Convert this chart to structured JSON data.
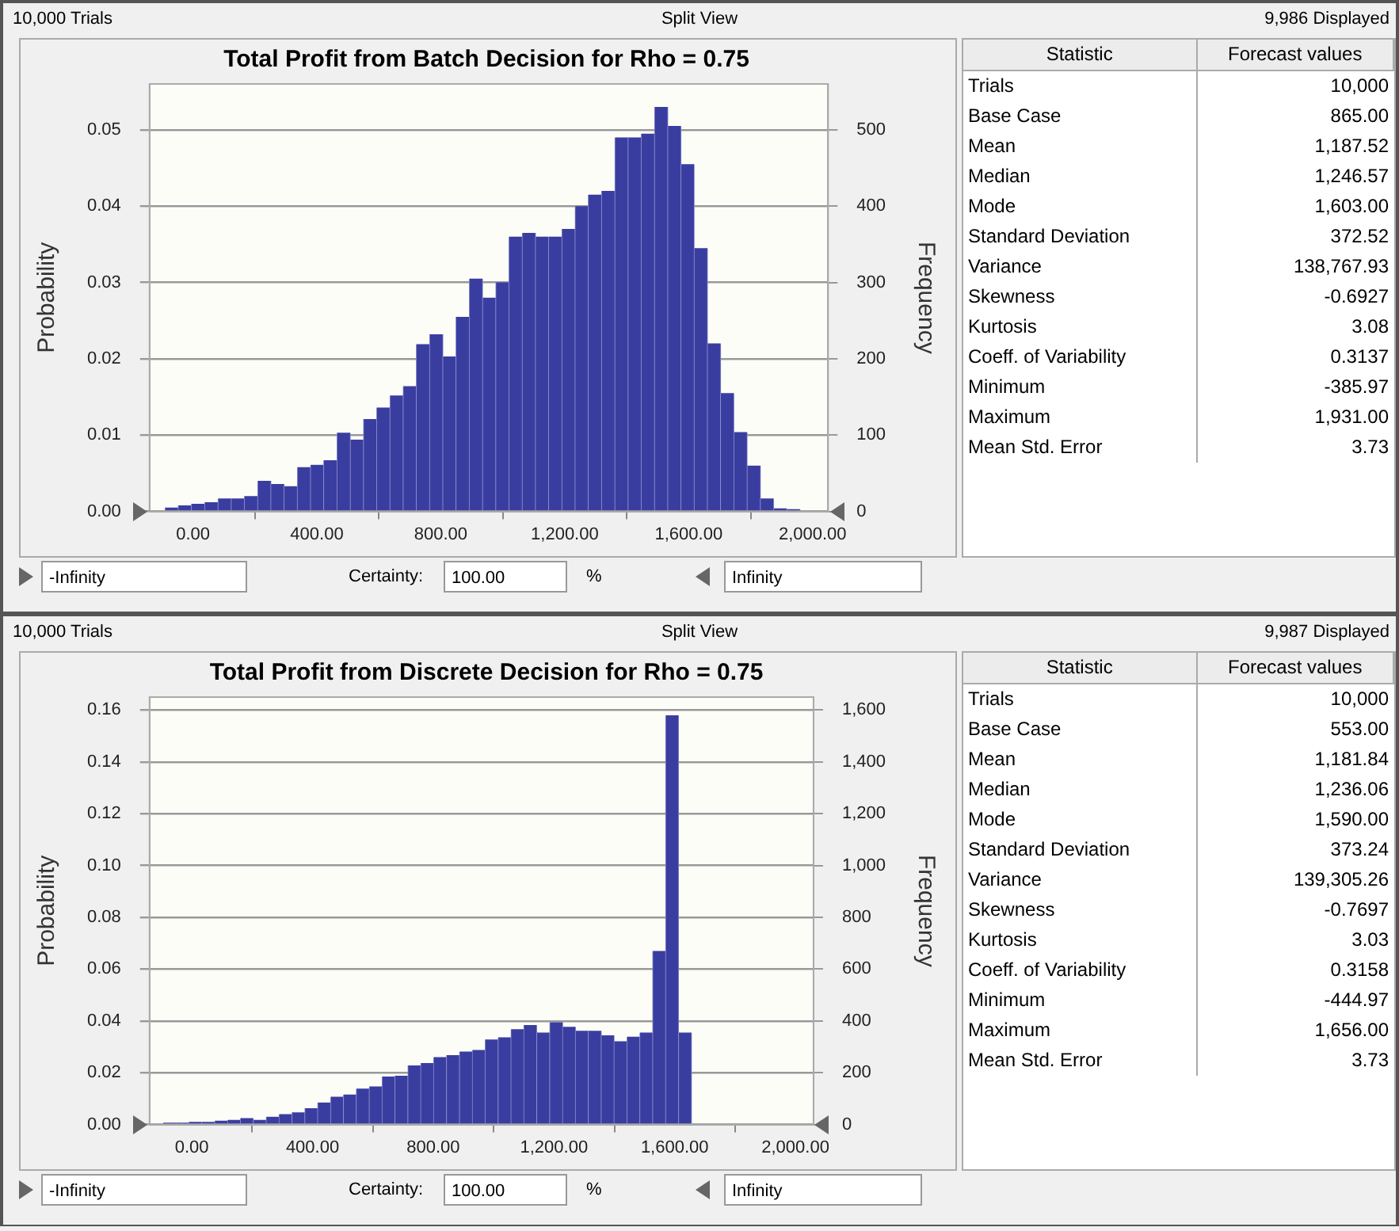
{
  "chart_data": [
    {
      "type": "histogram",
      "title": "Total Profit from Batch Decision for Rho = 0.75",
      "ylabel": "Probability",
      "y2label": "Frequency",
      "color": "#3a3da0",
      "bins": [
        -90,
        -47,
        -5,
        38,
        81,
        124,
        166,
        209,
        252,
        294,
        337,
        380,
        422,
        465,
        508,
        551,
        593,
        636,
        679,
        721,
        764,
        807,
        849,
        892,
        935,
        978,
        1020,
        1063,
        1106,
        1148,
        1191,
        1234,
        1276,
        1319,
        1362,
        1405,
        1447,
        1490,
        1533,
        1575,
        1618,
        1661,
        1703,
        1746,
        1789,
        1832,
        1874,
        1917,
        1960
      ],
      "values": [
        0.0005,
        0.0008,
        0.001,
        0.0012,
        0.0017,
        0.0017,
        0.002,
        0.004,
        0.0036,
        0.0033,
        0.0058,
        0.0061,
        0.0067,
        0.0103,
        0.0094,
        0.0121,
        0.0136,
        0.0152,
        0.0164,
        0.0219,
        0.0232,
        0.0203,
        0.0255,
        0.0305,
        0.028,
        0.03,
        0.036,
        0.0365,
        0.036,
        0.036,
        0.037,
        0.04,
        0.0415,
        0.042,
        0.049,
        0.049,
        0.0495,
        0.053,
        0.0505,
        0.0455,
        0.0345,
        0.022,
        0.0155,
        0.0104,
        0.006,
        0.0017,
        0.0004,
        0.0003
      ],
      "xlim": [
        -140,
        2050
      ],
      "xticks": [
        {
          "value": 0,
          "label": "0.00"
        },
        {
          "value": 400,
          "label": "400.00"
        },
        {
          "value": 800,
          "label": "800.00"
        },
        {
          "value": 1200,
          "label": "1,200.00"
        },
        {
          "value": 1600,
          "label": "1,600.00"
        },
        {
          "value": 2000,
          "label": "2,000.00"
        }
      ],
      "ylim": [
        0,
        0.056
      ],
      "yticks": [
        {
          "value": 0,
          "label": "0.00"
        },
        {
          "value": 0.01,
          "label": "0.01"
        },
        {
          "value": 0.02,
          "label": "0.02"
        },
        {
          "value": 0.03,
          "label": "0.03"
        },
        {
          "value": 0.04,
          "label": "0.04"
        },
        {
          "value": 0.05,
          "label": "0.05"
        }
      ],
      "y2lim": [
        0,
        560
      ],
      "y2ticks": [
        0,
        100,
        200,
        300,
        400,
        500
      ],
      "grid": "y",
      "annotations": [
        "10,000 Trials",
        "Split View",
        "9,986 Displayed",
        "-Infinity",
        "Certainty:",
        "100.00",
        "%",
        "Infinity"
      ]
    },
    {
      "type": "other",
      "annotations": [
        "Statistic",
        "Forecast values",
        "Trials",
        "10,000",
        "Base Case",
        "865.00",
        "Mean",
        "1,187.52",
        "Median",
        "1,246.57",
        "Mode",
        "1,603.00",
        "Standard Deviation",
        "372.52",
        "Variance",
        "138,767.93",
        "Skewness",
        "-0.6927",
        "Kurtosis",
        "3.08",
        "Coeff. of Variability",
        "0.3137",
        "Minimum",
        "-385.97",
        "Maximum",
        "1,931.00",
        "Mean Std. Error",
        "3.73"
      ]
    },
    {
      "type": "histogram",
      "title": "Total Profit from Discrete Decision for Rho = 0.75",
      "ylabel": "Probability",
      "y2label": "Frequency",
      "color": "#3a3da0",
      "bins": [
        -95,
        -52,
        -9,
        33,
        76,
        119,
        161,
        204,
        247,
        289,
        332,
        375,
        417,
        460,
        503,
        545,
        588,
        631,
        673,
        716,
        759,
        801,
        844,
        887,
        930,
        972,
        1015,
        1058,
        1100,
        1143,
        1186,
        1229,
        1271,
        1314,
        1357,
        1399,
        1442,
        1485,
        1527,
        1570,
        1613,
        1656
      ],
      "values": [
        0.0007,
        0.0007,
        0.001,
        0.001,
        0.0015,
        0.0018,
        0.0025,
        0.0018,
        0.003,
        0.004,
        0.0047,
        0.0063,
        0.0085,
        0.0107,
        0.0116,
        0.0139,
        0.0147,
        0.0185,
        0.0188,
        0.0228,
        0.0237,
        0.026,
        0.0268,
        0.0282,
        0.0288,
        0.0328,
        0.0337,
        0.0368,
        0.0384,
        0.0355,
        0.0395,
        0.0377,
        0.0362,
        0.0362,
        0.0344,
        0.0321,
        0.0339,
        0.0355,
        0.067,
        0.158,
        0.0355
      ],
      "xlim": [
        -140,
        2060
      ],
      "xticks": [
        {
          "value": 0,
          "label": "0.00"
        },
        {
          "value": 400,
          "label": "400.00"
        },
        {
          "value": 800,
          "label": "800.00"
        },
        {
          "value": 1200,
          "label": "1,200.00"
        },
        {
          "value": 1600,
          "label": "1,600.00"
        },
        {
          "value": 2000,
          "label": "2,000.00"
        }
      ],
      "ylim": [
        0,
        0.165
      ],
      "yticks": [
        {
          "value": 0,
          "label": "0.00"
        },
        {
          "value": 0.02,
          "label": "0.02"
        },
        {
          "value": 0.04,
          "label": "0.04"
        },
        {
          "value": 0.06,
          "label": "0.06"
        },
        {
          "value": 0.08,
          "label": "0.08"
        },
        {
          "value": 0.1,
          "label": "0.10"
        },
        {
          "value": 0.12,
          "label": "0.12"
        },
        {
          "value": 0.14,
          "label": "0.14"
        },
        {
          "value": 0.16,
          "label": "0.16"
        }
      ],
      "y2lim": [
        0,
        1650
      ],
      "y2ticks": [
        0,
        200,
        400,
        600,
        800,
        {
          "value": 1000,
          "label": "1,000"
        },
        {
          "value": 1200,
          "label": "1,200"
        },
        {
          "value": 1400,
          "label": "1,400"
        },
        {
          "value": 1600,
          "label": "1,600"
        }
      ],
      "grid": "y",
      "annotations": [
        "10,000 Trials",
        "Split View",
        "9,987 Displayed",
        "-Infinity",
        "Certainty:",
        "100.00",
        "%",
        "Infinity"
      ]
    },
    {
      "type": "other",
      "annotations": [
        "Statistic",
        "Forecast values",
        "Trials",
        "10,000",
        "Base Case",
        "553.00",
        "Mean",
        "1,181.84",
        "Median",
        "1,236.06",
        "Mode",
        "1,590.00",
        "Standard Deviation",
        "373.24",
        "Variance",
        "139,305.26",
        "Skewness",
        "-0.7697",
        "Kurtosis",
        "3.03",
        "Coeff. of Variability",
        "0.3158",
        "Minimum",
        "-444.97",
        "Maximum",
        "1,656.00",
        "Mean Std. Error",
        "3.73"
      ]
    }
  ]
}
